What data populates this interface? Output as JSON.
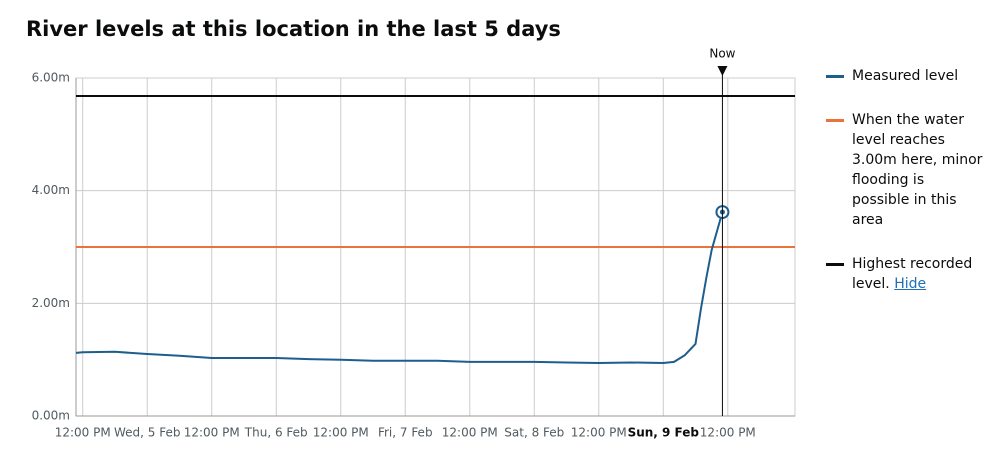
{
  "chart_data": {
    "type": "line",
    "title": "River levels at this location in the last 5 days",
    "xlim": [
      "4 Feb 10:45",
      "10 Feb 00:30"
    ],
    "ylim": [
      0,
      6
    ],
    "yticks": [
      {
        "value": 0,
        "label": "0.00m"
      },
      {
        "value": 2,
        "label": "2.00m"
      },
      {
        "value": 4,
        "label": "4.00m"
      },
      {
        "value": 6,
        "label": "6.00m"
      }
    ],
    "xticks": [
      {
        "value": "4 Feb 12:00",
        "label": "12:00 PM"
      },
      {
        "value": "5 Feb 00:00",
        "label": "Wed, 5 Feb"
      },
      {
        "value": "5 Feb 12:00",
        "label": "12:00 PM"
      },
      {
        "value": "6 Feb 00:00",
        "label": "Thu, 6 Feb"
      },
      {
        "value": "6 Feb 12:00",
        "label": "12:00 PM"
      },
      {
        "value": "7 Feb 00:00",
        "label": "Fri, 7 Feb"
      },
      {
        "value": "7 Feb 12:00",
        "label": "12:00 PM"
      },
      {
        "value": "8 Feb 00:00",
        "label": "Sat, 8 Feb"
      },
      {
        "value": "8 Feb 12:00",
        "label": "12:00 PM"
      },
      {
        "value": "9 Feb 00:00",
        "label": "Sun, 9 Feb",
        "bold": true
      },
      {
        "value": "9 Feb 12:00",
        "label": "12:00 PM"
      }
    ],
    "grid": true,
    "x": [
      "4 Feb 10:45",
      "4 Feb 12:00",
      "4 Feb 18:00",
      "5 Feb 00:00",
      "5 Feb 06:00",
      "5 Feb 12:00",
      "5 Feb 18:00",
      "6 Feb 00:00",
      "6 Feb 06:00",
      "6 Feb 12:00",
      "6 Feb 18:00",
      "7 Feb 00:00",
      "7 Feb 06:00",
      "7 Feb 12:00",
      "7 Feb 18:00",
      "8 Feb 00:00",
      "8 Feb 06:00",
      "8 Feb 12:00",
      "8 Feb 18:00",
      "9 Feb 00:00",
      "9 Feb 02:00",
      "9 Feb 04:00",
      "9 Feb 06:00",
      "9 Feb 07:00",
      "9 Feb 08:00",
      "9 Feb 09:00",
      "9 Feb 11:00"
    ],
    "series": [
      {
        "name": "Measured level",
        "color": "#1d5e8c",
        "values": [
          1.12,
          1.13,
          1.14,
          1.1,
          1.07,
          1.03,
          1.03,
          1.03,
          1.01,
          1.0,
          0.98,
          0.98,
          0.98,
          0.96,
          0.96,
          0.96,
          0.95,
          0.94,
          0.95,
          0.94,
          0.96,
          1.08,
          1.28,
          1.9,
          2.45,
          2.95,
          3.62
        ]
      }
    ],
    "reference_lines": [
      {
        "name": "When the water level reaches 3.00m here, minor flooding is possible in this area",
        "color": "#e8743b",
        "value": 3.0
      },
      {
        "name": "Highest recorded level.",
        "color": "#0b0c0c",
        "value": 5.68,
        "link": "Hide"
      }
    ],
    "now": {
      "label": "Now",
      "x": "9 Feb 11:00"
    }
  }
}
